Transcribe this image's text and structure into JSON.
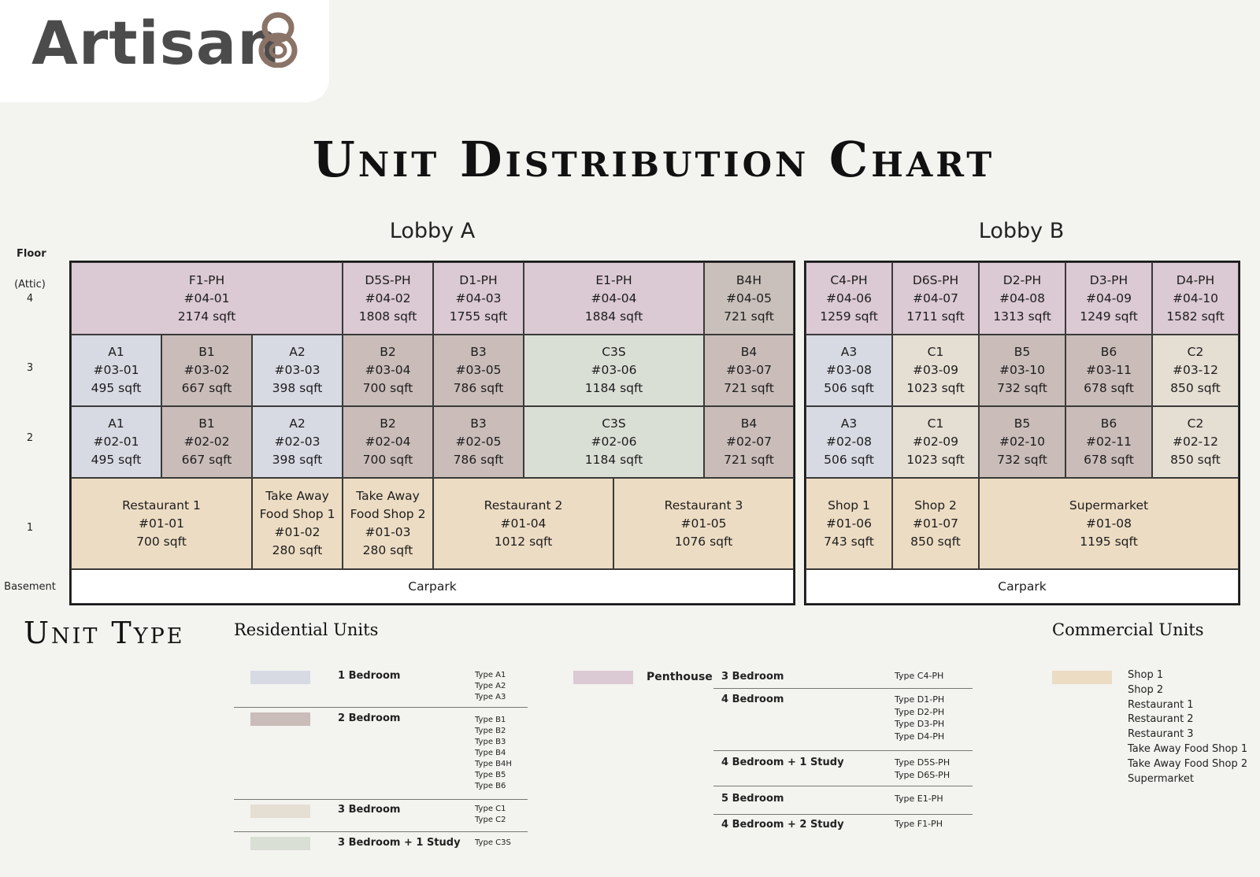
{
  "brand": {
    "name": "Artisan",
    "mark": "8"
  },
  "title": "Unit Distribution Chart",
  "colors": {
    "penthouse": "#dbc9d3",
    "one_bedroom": "#d7d9e3",
    "two_bedroom": "#c9bcb9",
    "three_bedroom": "#e5ded3",
    "three_bedroom_study": "#dadfd6",
    "commercial": "#ecdcc3",
    "type_b4h": "#c9c0bb"
  },
  "floor_header": "Floor",
  "floors": {
    "f4_note": "(Attic)",
    "f4": "4",
    "f3": "3",
    "f2": "2",
    "f1": "1",
    "basement": "Basement"
  },
  "lobby_a": {
    "title": "Lobby A",
    "units": [
      {
        "type": "F1-PH",
        "no": "#04-01",
        "size": "2174 sqft"
      },
      {
        "type": "D5S-PH",
        "no": "#04-02",
        "size": "1808 sqft"
      },
      {
        "type": "D1-PH",
        "no": "#04-03",
        "size": "1755 sqft"
      },
      {
        "type": "E1-PH",
        "no": "#04-04",
        "size": "1884 sqft"
      },
      {
        "type": "B4H",
        "no": "#04-05",
        "size": "721 sqft"
      },
      {
        "type": "A1",
        "no": "#03-01",
        "size": "495 sqft"
      },
      {
        "type": "B1",
        "no": "#03-02",
        "size": "667 sqft"
      },
      {
        "type": "A2",
        "no": "#03-03",
        "size": "398 sqft"
      },
      {
        "type": "B2",
        "no": "#03-04",
        "size": "700 sqft"
      },
      {
        "type": "B3",
        "no": "#03-05",
        "size": "786 sqft"
      },
      {
        "type": "C3S",
        "no": "#03-06",
        "size": "1184 sqft"
      },
      {
        "type": "B4",
        "no": "#03-07",
        "size": "721 sqft"
      },
      {
        "type": "A1",
        "no": "#02-01",
        "size": "495 sqft"
      },
      {
        "type": "B1",
        "no": "#02-02",
        "size": "667 sqft"
      },
      {
        "type": "A2",
        "no": "#02-03",
        "size": "398 sqft"
      },
      {
        "type": "B2",
        "no": "#02-04",
        "size": "700 sqft"
      },
      {
        "type": "B3",
        "no": "#02-05",
        "size": "786 sqft"
      },
      {
        "type": "C3S",
        "no": "#02-06",
        "size": "1184 sqft"
      },
      {
        "type": "B4",
        "no": "#02-07",
        "size": "721 sqft"
      },
      {
        "type": "Restaurant 1",
        "no": "#01-01",
        "size": "700 sqft"
      },
      {
        "type": "Take Away",
        "type2": "Food Shop 1",
        "no": "#01-02",
        "size": "280 sqft"
      },
      {
        "type": "Take Away",
        "type2": "Food Shop 2",
        "no": "#01-03",
        "size": "280 sqft"
      },
      {
        "type": "Restaurant 2",
        "no": "#01-04",
        "size": "1012 sqft"
      },
      {
        "type": "Restaurant 3",
        "no": "#01-05",
        "size": "1076 sqft"
      }
    ],
    "carpark": "Carpark"
  },
  "lobby_b": {
    "title": "Lobby B",
    "units": [
      {
        "type": "C4-PH",
        "no": "#04-06",
        "size": "1259 sqft"
      },
      {
        "type": "D6S-PH",
        "no": "#04-07",
        "size": "1711 sqft"
      },
      {
        "type": "D2-PH",
        "no": "#04-08",
        "size": "1313 sqft"
      },
      {
        "type": "D3-PH",
        "no": "#04-09",
        "size": "1249 sqft"
      },
      {
        "type": "D4-PH",
        "no": "#04-10",
        "size": "1582 sqft"
      },
      {
        "type": "A3",
        "no": "#03-08",
        "size": "506 sqft"
      },
      {
        "type": "C1",
        "no": "#03-09",
        "size": "1023 sqft"
      },
      {
        "type": "B5",
        "no": "#03-10",
        "size": "732 sqft"
      },
      {
        "type": "B6",
        "no": "#03-11",
        "size": "678 sqft"
      },
      {
        "type": "C2",
        "no": "#03-12",
        "size": "850 sqft"
      },
      {
        "type": "A3",
        "no": "#02-08",
        "size": "506 sqft"
      },
      {
        "type": "C1",
        "no": "#02-09",
        "size": "1023 sqft"
      },
      {
        "type": "B5",
        "no": "#02-10",
        "size": "732 sqft"
      },
      {
        "type": "B6",
        "no": "#02-11",
        "size": "678 sqft"
      },
      {
        "type": "C2",
        "no": "#02-12",
        "size": "850 sqft"
      },
      {
        "type": "Shop 1",
        "no": "#01-06",
        "size": "743 sqft"
      },
      {
        "type": "Shop 2",
        "no": "#01-07",
        "size": "850 sqft"
      },
      {
        "type": "Supermarket",
        "no": "#01-08",
        "size": "1195 sqft"
      }
    ],
    "carpark": "Carpark"
  },
  "legend": {
    "section_title": "Unit Type",
    "residential_title": "Residential Units",
    "commercial_title": "Commercial Units",
    "residential": [
      {
        "name": "1 Bedroom",
        "types": [
          "Type A1",
          "Type A2",
          "Type A3"
        ]
      },
      {
        "name": "2 Bedroom",
        "types": [
          "Type B1",
          "Type B2",
          "Type B3",
          "Type B4",
          "Type B4H",
          "Type B5",
          "Type B6"
        ]
      },
      {
        "name": "3 Bedroom",
        "types": [
          "Type C1",
          "Type C2"
        ]
      },
      {
        "name": "3 Bedroom + 1 Study",
        "types": [
          "Type C3S"
        ]
      }
    ],
    "penthouse_label": "Penthouse",
    "penthouse": [
      {
        "name": "3 Bedroom",
        "types": [
          "Type C4-PH"
        ]
      },
      {
        "name": "4 Bedroom",
        "types": [
          "Type D1-PH",
          "Type D2-PH",
          "Type D3-PH",
          "Type D4-PH"
        ]
      },
      {
        "name": "4 Bedroom + 1 Study",
        "types": [
          "Type D5S-PH",
          "Type D6S-PH"
        ]
      },
      {
        "name": "5 Bedroom",
        "types": [
          "Type E1-PH"
        ]
      },
      {
        "name": "4 Bedroom + 2 Study",
        "types": [
          "Type F1-PH"
        ]
      }
    ],
    "commercial": [
      "Shop 1",
      "Shop 2",
      "Restaurant 1",
      "Restaurant 2",
      "Restaurant 3",
      "Take Away Food Shop 1",
      "Take Away Food Shop 2",
      "Supermarket"
    ]
  }
}
